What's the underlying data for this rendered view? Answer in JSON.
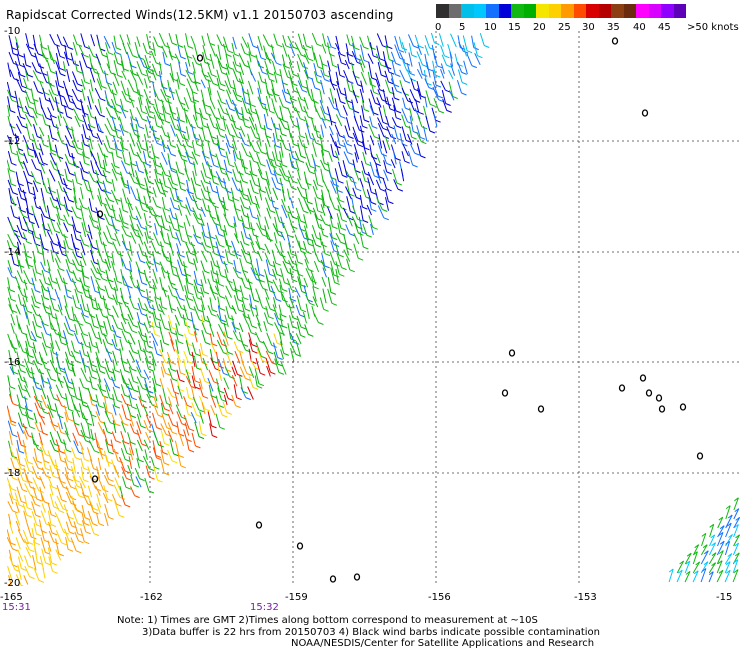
{
  "title": "Rapidscat Corrected Winds(12.5KM) v1.1 20150703 ascending",
  "scale": {
    "colors": [
      "#2f2f2f",
      "#6d6d6d",
      "#00bfe8",
      "#00c8ff",
      "#1470ff",
      "#0000d8",
      "#11b811",
      "#00b000",
      "#f5e600",
      "#ffd000",
      "#ff9b00",
      "#ff4c00",
      "#d80000",
      "#b40000",
      "#8c3f12",
      "#6b2b0e",
      "#ff00ff",
      "#d800ff",
      "#8f00ff",
      "#5e00b8"
    ],
    "labels": [
      "0",
      "5",
      "10",
      "15",
      "20",
      "25",
      "30",
      "35",
      "40",
      "45",
      ">50 knots"
    ]
  },
  "map": {
    "lat_labels": [
      "-10",
      "-12",
      "-14",
      "-16",
      "-18",
      "-20"
    ],
    "lon_labels": [
      "-165",
      "-162",
      "-159",
      "-156",
      "-153",
      "-15"
    ]
  },
  "times": [
    "15:31",
    "15:32"
  ],
  "notes": [
    "Note: 1) Times are GMT 2)Times along bottom correspond to measurement at ~10S",
    "3)Data buffer is 22 hrs from 20150703 4) Black wind barbs indicate possible contamination",
    "NOAA/NESDIS/Center for Satellite Applications and Research"
  ]
}
